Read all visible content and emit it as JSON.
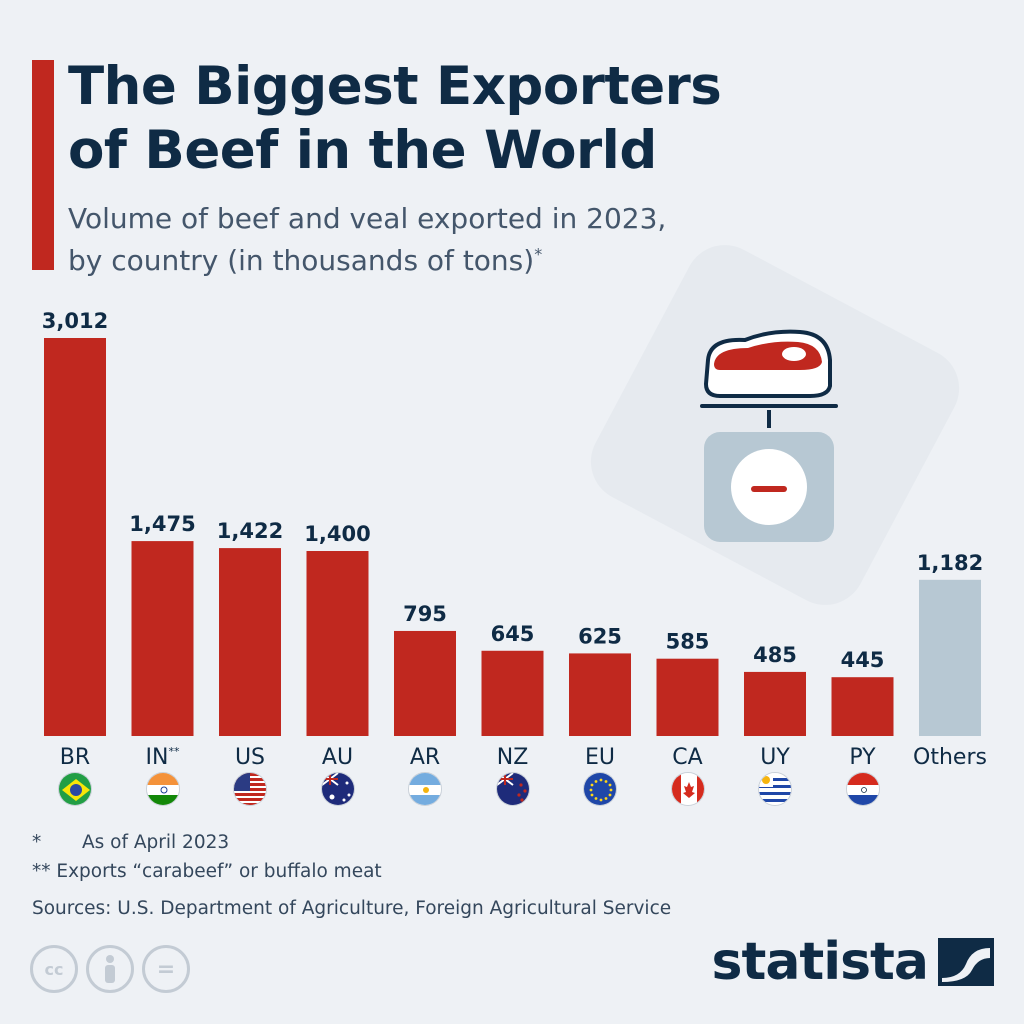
{
  "header": {
    "title_line1": "The Biggest Exporters",
    "title_line2": "of Beef in the World",
    "subtitle_line1": "Volume of beef and veal exported in 2023,",
    "subtitle_line2": "by country (in thousands of tons)",
    "subtitle_marker": "*"
  },
  "colors": {
    "accent": "#c0281f",
    "bar_primary": "#c0281f",
    "bar_others": "#b7c8d3",
    "text_dark": "#0f2b45",
    "background": "#eef1f5"
  },
  "chart_data": {
    "type": "bar",
    "title": "The Biggest Exporters of Beef in the World",
    "subtitle": "Volume of beef and veal exported in 2023, by country (in thousands of tons)",
    "categories": [
      "BR",
      "IN",
      "US",
      "AU",
      "AR",
      "NZ",
      "EU",
      "CA",
      "UY",
      "PY",
      "Others"
    ],
    "category_markers": [
      "",
      "**",
      "",
      "",
      "",
      "",
      "",
      "",
      "",
      "",
      ""
    ],
    "values": [
      3012,
      1475,
      1422,
      1400,
      795,
      645,
      625,
      585,
      485,
      445,
      1182
    ],
    "value_labels": [
      "3,012",
      "1,475",
      "1,422",
      "1,400",
      "795",
      "645",
      "625",
      "585",
      "485",
      "445",
      "1,182"
    ],
    "bar_colors": [
      "#c0281f",
      "#c0281f",
      "#c0281f",
      "#c0281f",
      "#c0281f",
      "#c0281f",
      "#c0281f",
      "#c0281f",
      "#c0281f",
      "#c0281f",
      "#b7c8d3"
    ],
    "flags": [
      "brazil",
      "india",
      "usa",
      "australia",
      "argentina",
      "new-zealand",
      "european-union",
      "canada",
      "uruguay",
      "paraguay",
      ""
    ],
    "ylim": [
      0,
      3012
    ],
    "xlabel": "",
    "ylabel": "",
    "grid": false,
    "legend": "none"
  },
  "footnotes": {
    "note1_marker": "*",
    "note1_text": "As of April 2023",
    "note2": "** Exports “carabeef” or buffalo meat",
    "sources": "Sources: U.S. Department of Agriculture, Foreign Agricultural Service"
  },
  "icons": {
    "illustration": "meat-on-scale-icon",
    "license": [
      "cc-icon",
      "attribution-icon",
      "noderivs-icon"
    ],
    "brand": "statista-logo-icon"
  },
  "brand": {
    "name": "statista"
  },
  "license": {
    "cc": "cc",
    "nd": "="
  }
}
